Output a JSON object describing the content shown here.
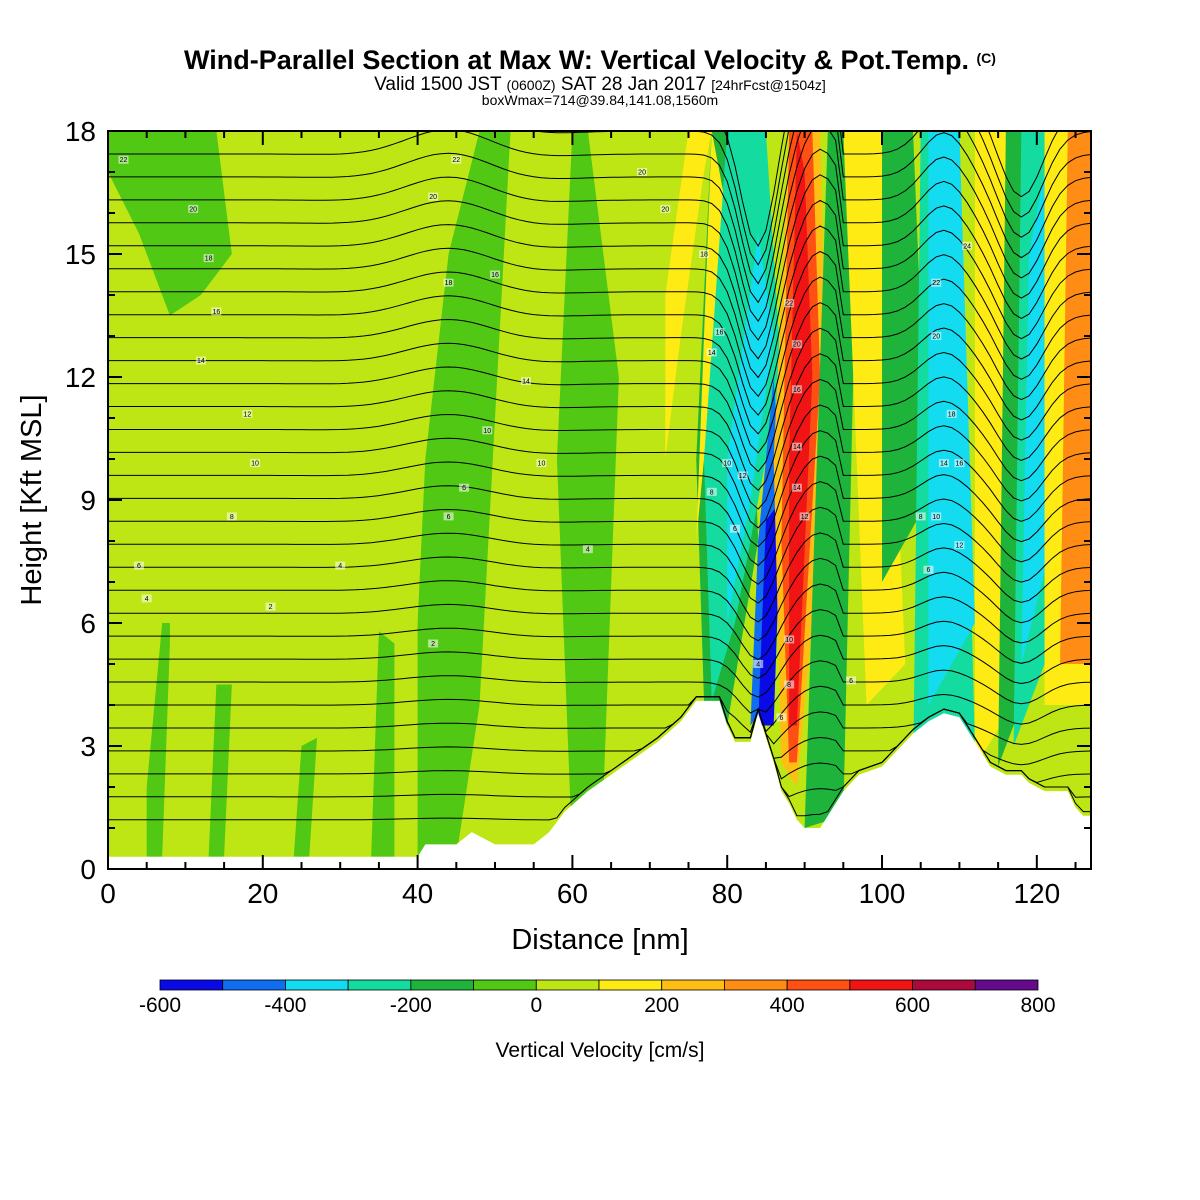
{
  "header": {
    "title_main": "Wind-Parallel Section at Max W: Vertical Velocity & Pot.Temp.",
    "title_mark": "(C)",
    "valid_prefix": "Valid 1500 JST",
    "valid_utc": "(0600Z)",
    "valid_date": "SAT 28 Jan 2017",
    "valid_fcst": "[24hrFcst@1504z]",
    "box_info": "boxWmax=714@39.84,141.08,1560m"
  },
  "chart_data": {
    "type": "heatmap",
    "xlabel": "Distance [nm]",
    "ylabel": "Height [Kft MSL]",
    "xlim": [
      0,
      127
    ],
    "ylim": [
      0,
      18
    ],
    "x_ticks": [
      0,
      20,
      40,
      60,
      80,
      100,
      120
    ],
    "y_ticks": [
      0,
      3,
      6,
      9,
      12,
      15,
      18
    ],
    "colorbar": {
      "label": "Vertical Velocity [cm/s]",
      "ticks": [
        -600,
        -400,
        -200,
        0,
        200,
        400,
        600,
        800
      ],
      "bins": [
        {
          "min": -600,
          "max": -500,
          "color": "#0a0ae6"
        },
        {
          "min": -500,
          "max": -400,
          "color": "#0f6ef0"
        },
        {
          "min": -400,
          "max": -300,
          "color": "#14dcf0"
        },
        {
          "min": -300,
          "max": -200,
          "color": "#14dca0"
        },
        {
          "min": -200,
          "max": -100,
          "color": "#1eb43c"
        },
        {
          "min": -100,
          "max": 0,
          "color": "#50c814"
        },
        {
          "min": 0,
          "max": 100,
          "color": "#bee614"
        },
        {
          "min": 100,
          "max": 200,
          "color": "#ffeb14"
        },
        {
          "min": 200,
          "max": 300,
          "color": "#ffbe14"
        },
        {
          "min": 300,
          "max": 400,
          "color": "#ff8c14"
        },
        {
          "min": 400,
          "max": 500,
          "color": "#ff5014"
        },
        {
          "min": 500,
          "max": 600,
          "color": "#f01414"
        },
        {
          "min": 600,
          "max": 700,
          "color": "#aa0a3c"
        },
        {
          "min": 700,
          "max": 800,
          "color": "#640a8c"
        }
      ]
    },
    "background_value_color": "#bee614",
    "terrain": [
      [
        0,
        0.3
      ],
      [
        5,
        0.3
      ],
      [
        20,
        0.3
      ],
      [
        40,
        0.3
      ],
      [
        41,
        0.6
      ],
      [
        45,
        0.6
      ],
      [
        47,
        0.9
      ],
      [
        50,
        0.6
      ],
      [
        55,
        0.6
      ],
      [
        57,
        0.9
      ],
      [
        59,
        1.4
      ],
      [
        62,
        1.9
      ],
      [
        65,
        2.3
      ],
      [
        68,
        2.7
      ],
      [
        71,
        3.1
      ],
      [
        74,
        3.6
      ],
      [
        76,
        4.1
      ],
      [
        79,
        4.1
      ],
      [
        80,
        3.5
      ],
      [
        81,
        3.1
      ],
      [
        83,
        3.1
      ],
      [
        84,
        3.8
      ],
      [
        86,
        2.6
      ],
      [
        87,
        1.9
      ],
      [
        88,
        1.6
      ],
      [
        89,
        1.2
      ],
      [
        90,
        1.0
      ],
      [
        92,
        1.0
      ],
      [
        93,
        1.3
      ],
      [
        95,
        1.9
      ],
      [
        97,
        2.3
      ],
      [
        100,
        2.5
      ],
      [
        102,
        2.9
      ],
      [
        104,
        3.3
      ],
      [
        106,
        3.6
      ],
      [
        108,
        3.8
      ],
      [
        110,
        3.7
      ],
      [
        112,
        3.1
      ],
      [
        114,
        2.5
      ],
      [
        116,
        2.3
      ],
      [
        118,
        2.3
      ],
      [
        119,
        2.1
      ],
      [
        121,
        1.9
      ],
      [
        124,
        1.9
      ],
      [
        125,
        1.5
      ],
      [
        126,
        1.3
      ],
      [
        127,
        1.3
      ]
    ],
    "bands": [
      {
        "x": [
          0,
          10,
          14,
          16,
          12,
          8,
          4,
          0
        ],
        "y": [
          18,
          18,
          18,
          15,
          14,
          13.5,
          15.5,
          17
        ],
        "value": -50
      },
      {
        "x": [
          5,
          7,
          8,
          8,
          7,
          5
        ],
        "y": [
          0.3,
          0.3,
          5.5,
          6.0,
          6.0,
          2.0
        ],
        "value": -50
      },
      {
        "x": [
          13,
          15,
          16,
          14
        ],
        "y": [
          0.3,
          0.3,
          4.5,
          4.5
        ],
        "value": -50
      },
      {
        "x": [
          24,
          26,
          27,
          25
        ],
        "y": [
          0.3,
          0.3,
          3.2,
          3.0
        ],
        "value": -50
      },
      {
        "x": [
          34,
          37,
          37,
          35
        ],
        "y": [
          0.3,
          0.3,
          5.5,
          5.8
        ],
        "value": -50
      },
      {
        "x": [
          40,
          45,
          48,
          52,
          48,
          44,
          41,
          40
        ],
        "y": [
          0.3,
          0.3,
          4.0,
          18,
          18,
          15,
          10,
          6
        ],
        "value": -50
      },
      {
        "x": [
          60,
          64,
          66,
          62,
          60,
          58
        ],
        "y": [
          0.3,
          1.8,
          12,
          18,
          18,
          10
        ],
        "value": -50
      },
      {
        "x": [
          77,
          80,
          84,
          82,
          78,
          76
        ],
        "y": [
          4.1,
          3.5,
          8.0,
          18,
          18,
          10
        ],
        "value": -150
      },
      {
        "x": [
          76,
          78,
          80,
          78
        ],
        "y": [
          8.0,
          12,
          16,
          18
        ],
        "value": 150
      },
      {
        "x": [
          72,
          74,
          77,
          78,
          75,
          72
        ],
        "y": [
          10,
          13,
          17,
          18,
          18,
          14
        ],
        "value": 150
      },
      {
        "x": [
          78,
          81,
          87,
          85,
          80,
          77
        ],
        "y": [
          4.1,
          6.0,
          12,
          18,
          18,
          10
        ],
        "value": -250
      },
      {
        "x": [
          80,
          83,
          86,
          84,
          80
        ],
        "y": [
          6.0,
          9.0,
          13,
          15.5,
          10
        ],
        "value": -350
      },
      {
        "x": [
          83,
          85,
          87,
          86,
          84
        ],
        "y": [
          3.5,
          4.0,
          9.0,
          12,
          8.0
        ],
        "value": -450
      },
      {
        "x": [
          84,
          86,
          87,
          85
        ],
        "y": [
          3.5,
          3.5,
          9.0,
          8.5
        ],
        "value": -550
      },
      {
        "x": [
          87,
          89,
          93,
          92,
          88,
          86
        ],
        "y": [
          2.6,
          2.0,
          10,
          18,
          18,
          10
        ],
        "value": 250
      },
      {
        "x": [
          88,
          89,
          92,
          91,
          88,
          87
        ],
        "y": [
          2.6,
          2.6,
          12,
          18,
          18,
          8
        ],
        "value": 450
      },
      {
        "x": [
          88,
          89,
          91,
          90,
          89,
          88
        ],
        "y": [
          3.5,
          3.5,
          12,
          17,
          18,
          10
        ],
        "value": 550
      },
      {
        "x": [
          90,
          95,
          97,
          93
        ],
        "y": [
          1.0,
          1.3,
          18,
          18
        ],
        "value": -150
      },
      {
        "x": [
          98,
          103,
          100,
          95
        ],
        "y": [
          4,
          5,
          18,
          18
        ],
        "value": 150
      },
      {
        "x": [
          100,
          106,
          104,
          100
        ],
        "y": [
          7,
          9,
          18,
          18
        ],
        "value": -150
      },
      {
        "x": [
          104,
          112,
          110,
          105
        ],
        "y": [
          2,
          3,
          18,
          18
        ],
        "value": -250
      },
      {
        "x": [
          106,
          112,
          110,
          106
        ],
        "y": [
          4,
          6,
          18,
          18
        ],
        "value": -350
      },
      {
        "x": [
          112,
          117,
          116,
          112
        ],
        "y": [
          2.5,
          4,
          18,
          18
        ],
        "value": 150
      },
      {
        "x": [
          115,
          121,
          120,
          116
        ],
        "y": [
          2.5,
          5.5,
          18,
          18
        ],
        "value": -150
      },
      {
        "x": [
          117,
          123,
          122,
          118
        ],
        "y": [
          3.0,
          6.0,
          18,
          18
        ],
        "value": -250
      },
      {
        "x": [
          118,
          122,
          121,
          119
        ],
        "y": [
          5.0,
          8.0,
          17,
          15
        ],
        "value": -350
      },
      {
        "x": [
          121,
          127,
          127,
          121
        ],
        "y": [
          4.0,
          4.0,
          18,
          18
        ],
        "value": 150
      },
      {
        "x": [
          123,
          127,
          127,
          124
        ],
        "y": [
          5.0,
          5.0,
          18,
          18
        ],
        "value": 350
      }
    ],
    "isentrope_labels": [
      {
        "x": 2,
        "y": 17.3,
        "text": "22"
      },
      {
        "x": 11,
        "y": 16.1,
        "text": "20"
      },
      {
        "x": 13,
        "y": 14.9,
        "text": "18"
      },
      {
        "x": 14,
        "y": 13.6,
        "text": "16"
      },
      {
        "x": 12,
        "y": 12.4,
        "text": "14"
      },
      {
        "x": 18,
        "y": 11.1,
        "text": "12"
      },
      {
        "x": 19,
        "y": 9.9,
        "text": "10"
      },
      {
        "x": 16,
        "y": 8.6,
        "text": "8"
      },
      {
        "x": 4,
        "y": 7.4,
        "text": "6"
      },
      {
        "x": 5,
        "y": 6.6,
        "text": "4"
      },
      {
        "x": 21,
        "y": 6.4,
        "text": "2"
      },
      {
        "x": 30,
        "y": 7.4,
        "text": "4"
      },
      {
        "x": 42,
        "y": 5.5,
        "text": "2"
      },
      {
        "x": 45,
        "y": 17.3,
        "text": "22"
      },
      {
        "x": 42,
        "y": 16.4,
        "text": "20"
      },
      {
        "x": 44,
        "y": 14.3,
        "text": "18"
      },
      {
        "x": 50,
        "y": 14.5,
        "text": "16"
      },
      {
        "x": 54,
        "y": 11.9,
        "text": "14"
      },
      {
        "x": 49,
        "y": 10.7,
        "text": "10"
      },
      {
        "x": 56,
        "y": 9.9,
        "text": "10"
      },
      {
        "x": 46,
        "y": 9.3,
        "text": "6"
      },
      {
        "x": 44,
        "y": 8.6,
        "text": "6"
      },
      {
        "x": 62,
        "y": 7.8,
        "text": "4"
      },
      {
        "x": 69,
        "y": 17.0,
        "text": "20"
      },
      {
        "x": 72,
        "y": 16.1,
        "text": "20"
      },
      {
        "x": 77,
        "y": 15.0,
        "text": "18"
      },
      {
        "x": 79,
        "y": 13.1,
        "text": "16"
      },
      {
        "x": 78,
        "y": 12.6,
        "text": "14"
      },
      {
        "x": 80,
        "y": 9.9,
        "text": "10"
      },
      {
        "x": 82,
        "y": 9.6,
        "text": "12"
      },
      {
        "x": 78,
        "y": 9.2,
        "text": "8"
      },
      {
        "x": 81,
        "y": 8.3,
        "text": "6"
      },
      {
        "x": 88,
        "y": 13.8,
        "text": "22"
      },
      {
        "x": 89,
        "y": 12.8,
        "text": "20"
      },
      {
        "x": 89,
        "y": 11.7,
        "text": "16"
      },
      {
        "x": 89,
        "y": 10.3,
        "text": "14"
      },
      {
        "x": 89,
        "y": 9.3,
        "text": "14"
      },
      {
        "x": 90,
        "y": 8.6,
        "text": "12"
      },
      {
        "x": 88,
        "y": 5.6,
        "text": "10"
      },
      {
        "x": 84,
        "y": 5.0,
        "text": "4"
      },
      {
        "x": 88,
        "y": 4.5,
        "text": "8"
      },
      {
        "x": 87,
        "y": 3.7,
        "text": "6"
      },
      {
        "x": 96,
        "y": 4.6,
        "text": "6"
      },
      {
        "x": 111,
        "y": 15.2,
        "text": "24"
      },
      {
        "x": 107,
        "y": 14.3,
        "text": "22"
      },
      {
        "x": 107,
        "y": 13.0,
        "text": "20"
      },
      {
        "x": 109,
        "y": 11.1,
        "text": "18"
      },
      {
        "x": 108,
        "y": 9.9,
        "text": "14"
      },
      {
        "x": 110,
        "y": 9.9,
        "text": "16"
      },
      {
        "x": 105,
        "y": 8.6,
        "text": "8"
      },
      {
        "x": 107,
        "y": 8.6,
        "text": "10"
      },
      {
        "x": 110,
        "y": 7.9,
        "text": "12"
      },
      {
        "x": 106,
        "y": 7.3,
        "text": "6"
      }
    ]
  }
}
